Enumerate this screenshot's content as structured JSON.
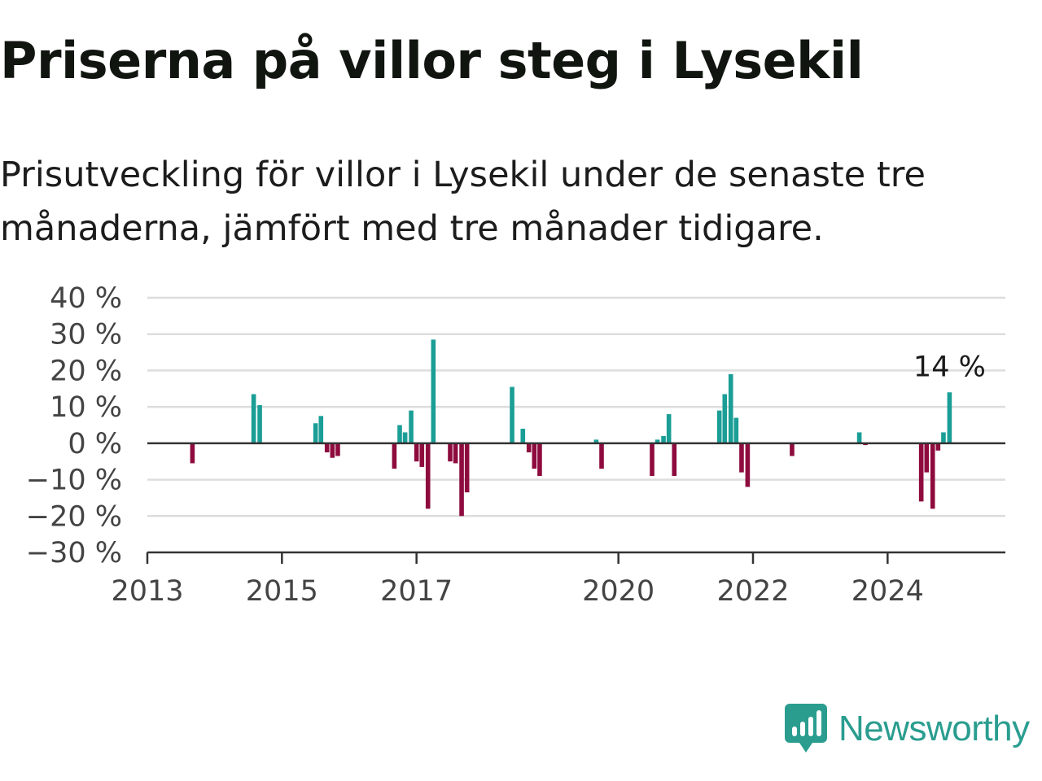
{
  "title": "Priserna på villor steg i Lysekil",
  "subtitle": "Prisutveckling för villor i Lysekil under de senaste tre månaderna, jämfört med tre månader tidigare.",
  "brand": {
    "name": "Newsworthy",
    "icon": "newsworthy-logo-icon",
    "color": "#2a9d8f"
  },
  "colors": {
    "positive": "#1a9e96",
    "negative": "#8e0b3e",
    "grid": "#dddddd",
    "zero_line": "#333333"
  },
  "chart_data": {
    "type": "bar",
    "title": "Priserna på villor steg i Lysekil",
    "xlabel": "",
    "ylabel": "",
    "ylim": [
      -30,
      40
    ],
    "xlim": [
      2013.0,
      2025.75
    ],
    "yticks": [
      40,
      30,
      20,
      10,
      0,
      -10,
      -20,
      -30
    ],
    "ytick_labels": [
      "40 %",
      "30 %",
      "20 %",
      "10 %",
      "0 %",
      "−10 %",
      "−20 %",
      "−30 %"
    ],
    "xticks": [
      2013,
      2015,
      2017,
      2020,
      2022,
      2024
    ],
    "xtick_labels": [
      "2013",
      "2015",
      "2017",
      "2020",
      "2022",
      "2024"
    ],
    "grid": true,
    "annotation": {
      "label": "14 %",
      "value": 14
    },
    "x": [
      2013.67,
      2014.58,
      2014.67,
      2015.5,
      2015.58,
      2015.67,
      2015.75,
      2015.83,
      2016.67,
      2016.75,
      2016.83,
      2016.92,
      2017.0,
      2017.08,
      2017.17,
      2017.25,
      2017.5,
      2017.58,
      2017.67,
      2017.75,
      2018.42,
      2018.58,
      2018.67,
      2018.75,
      2018.83,
      2019.67,
      2019.75,
      2020.5,
      2020.58,
      2020.67,
      2020.75,
      2020.83,
      2021.5,
      2021.58,
      2021.67,
      2021.75,
      2021.83,
      2021.92,
      2022.58,
      2023.58,
      2023.67,
      2024.5,
      2024.58,
      2024.67,
      2024.75,
      2024.83,
      2024.92
    ],
    "values": [
      -5.5,
      13.5,
      10.5,
      5.5,
      7.5,
      -2.5,
      -4,
      -3.5,
      -7,
      5,
      3,
      9,
      -5,
      -6.5,
      -18,
      28.5,
      -5,
      -5.5,
      -20,
      -13.5,
      15.5,
      4,
      -2.5,
      -7,
      -9,
      1,
      -7,
      -9,
      1,
      2,
      8,
      -9,
      9,
      13.5,
      19,
      7,
      -8,
      -12,
      -3.5,
      3,
      -0.5,
      -16,
      -8,
      -18,
      -2,
      3,
      14
    ]
  }
}
